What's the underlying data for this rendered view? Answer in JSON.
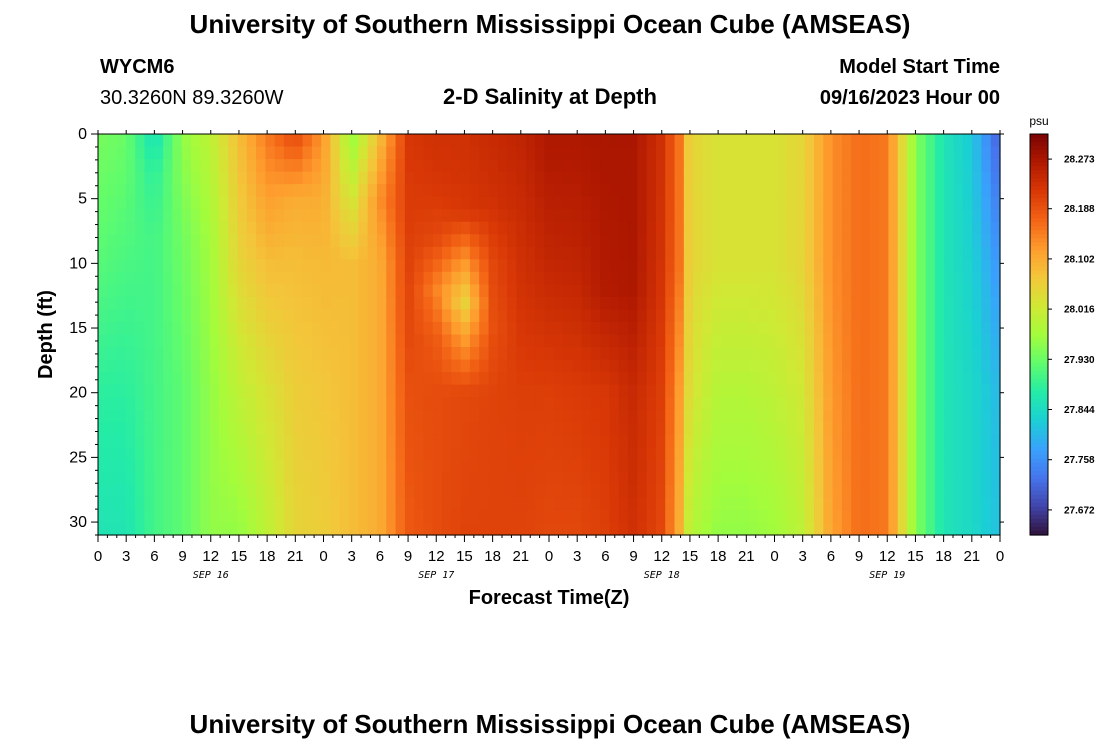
{
  "header": {
    "title": "University of Southern Mississippi Ocean Cube (AMSEAS)",
    "station_id": "WYCM6",
    "station_coords": "30.3260N  89.3260W",
    "plot_title": "2-D Salinity at Depth",
    "model_start_label": "Model Start Time",
    "model_start_value": "09/16/2023 Hour 00"
  },
  "footer": {
    "title": "University of Southern Mississippi Ocean Cube (AMSEAS)"
  },
  "chart_data": {
    "type": "heatmap",
    "xlabel": "Forecast Time(Z)",
    "ylabel": "Depth (ft)",
    "x_unit": "forecast hour",
    "xlim": [
      0,
      96
    ],
    "ylim": [
      0,
      31
    ],
    "y_inverted": true,
    "x_tick_labels": [
      "0",
      "3",
      "6",
      "9",
      "12",
      "15",
      "18",
      "21",
      "0",
      "3",
      "6",
      "9",
      "12",
      "15",
      "18",
      "21",
      "0",
      "3",
      "6",
      "9",
      "12",
      "15",
      "18",
      "21",
      "0",
      "3",
      "6",
      "9",
      "12",
      "15",
      "18",
      "21",
      "0"
    ],
    "date_labels": [
      {
        "label": "SEP 16",
        "hour": 12
      },
      {
        "label": "SEP 17",
        "hour": 36
      },
      {
        "label": "SEP 18",
        "hour": 60
      },
      {
        "label": "SEP 19",
        "hour": 84
      }
    ],
    "y_ticks": [
      0,
      5,
      10,
      15,
      20,
      25,
      30
    ],
    "colorbar": {
      "unit": "psu",
      "min": 27.629,
      "max": 28.316,
      "tick_values": [
        28.273,
        28.188,
        28.102,
        28.016,
        27.93,
        27.844,
        27.758,
        27.672
      ],
      "tick_labels": [
        "28.273",
        "28.188",
        "28.102",
        "28.016",
        "27.930",
        "27.844",
        "27.758",
        "27.672"
      ]
    },
    "profiles": [
      {
        "hour": 0,
        "depths": [
          0,
          10,
          20,
          31
        ],
        "values": [
          27.94,
          27.915,
          27.88,
          27.86
        ]
      },
      {
        "hour": 3,
        "depths": [
          0,
          10,
          20,
          31
        ],
        "values": [
          27.93,
          27.905,
          27.88,
          27.86
        ]
      },
      {
        "hour": 6,
        "depths": [
          0,
          3,
          8,
          20,
          31
        ],
        "values": [
          27.85,
          27.88,
          27.9,
          27.9,
          27.9
        ]
      },
      {
        "hour": 9,
        "depths": [
          0,
          8,
          20,
          31
        ],
        "values": [
          27.96,
          27.935,
          27.92,
          27.92
        ]
      },
      {
        "hour": 12,
        "depths": [
          0,
          8,
          20,
          31
        ],
        "values": [
          28.0,
          27.975,
          27.96,
          27.96
        ]
      },
      {
        "hour": 15,
        "depths": [
          0,
          10,
          20,
          31
        ],
        "values": [
          28.08,
          28.05,
          28.0,
          27.96
        ]
      },
      {
        "hour": 18,
        "depths": [
          0,
          10,
          20,
          31
        ],
        "values": [
          28.15,
          28.08,
          28.03,
          28.0
        ]
      },
      {
        "hour": 21,
        "depths": [
          0,
          5,
          10,
          20,
          31
        ],
        "values": [
          28.2,
          28.1,
          28.08,
          28.06,
          28.05
        ]
      },
      {
        "hour": 24,
        "depths": [
          0,
          5,
          10,
          20,
          31
        ],
        "values": [
          28.12,
          28.1,
          28.085,
          28.07,
          28.06
        ]
      },
      {
        "hour": 27,
        "depths": [
          0,
          5,
          10,
          20,
          31
        ],
        "values": [
          27.96,
          28.02,
          28.08,
          28.08,
          28.08
        ]
      },
      {
        "hour": 30,
        "depths": [
          0,
          5,
          10,
          20,
          31
        ],
        "values": [
          28.08,
          28.13,
          28.1,
          28.1,
          28.1
        ]
      },
      {
        "hour": 33,
        "depths": [
          0,
          8,
          15,
          20,
          31
        ],
        "values": [
          28.22,
          28.21,
          28.2,
          28.19,
          28.18
        ]
      },
      {
        "hour": 36,
        "depths": [
          0,
          4,
          8,
          12,
          16,
          20,
          31
        ],
        "values": [
          28.23,
          28.22,
          28.2,
          28.14,
          28.18,
          28.195,
          28.195
        ]
      },
      {
        "hour": 39,
        "depths": [
          0,
          6,
          10,
          13,
          16,
          20,
          31
        ],
        "values": [
          28.23,
          28.22,
          28.12,
          28.05,
          28.12,
          28.2,
          28.205
        ]
      },
      {
        "hour": 42,
        "depths": [
          0,
          5,
          10,
          15,
          20,
          31
        ],
        "values": [
          28.24,
          28.23,
          28.2,
          28.19,
          28.205,
          28.205
        ]
      },
      {
        "hour": 45,
        "depths": [
          0,
          10,
          20,
          31
        ],
        "values": [
          28.25,
          28.23,
          28.21,
          28.205
        ]
      },
      {
        "hour": 48,
        "depths": [
          0,
          10,
          20,
          31
        ],
        "values": [
          28.27,
          28.245,
          28.21,
          28.2
        ]
      },
      {
        "hour": 51,
        "depths": [
          0,
          10,
          20,
          31
        ],
        "values": [
          28.27,
          28.25,
          28.215,
          28.2
        ]
      },
      {
        "hour": 54,
        "depths": [
          0,
          12,
          20,
          31
        ],
        "values": [
          28.273,
          28.265,
          28.22,
          28.21
        ]
      },
      {
        "hour": 57,
        "depths": [
          0,
          12,
          20,
          31
        ],
        "values": [
          28.273,
          28.27,
          28.24,
          28.23
        ]
      },
      {
        "hour": 60,
        "depths": [
          0,
          10,
          20,
          31
        ],
        "values": [
          28.23,
          28.225,
          28.21,
          28.2
        ]
      },
      {
        "hour": 62,
        "depths": [
          0,
          10,
          20,
          31
        ],
        "values": [
          28.15,
          28.15,
          28.11,
          28.09
        ]
      },
      {
        "hour": 63,
        "depths": [
          0,
          10,
          20,
          31
        ],
        "values": [
          28.05,
          28.05,
          28.03,
          27.99
        ]
      },
      {
        "hour": 66,
        "depths": [
          0,
          10,
          20,
          31
        ],
        "values": [
          28.03,
          28.03,
          27.99,
          27.96
        ]
      },
      {
        "hour": 69,
        "depths": [
          0,
          10,
          20,
          31
        ],
        "values": [
          28.03,
          28.03,
          27.99,
          27.96
        ]
      },
      {
        "hour": 72,
        "depths": [
          0,
          10,
          20,
          31
        ],
        "values": [
          28.03,
          28.03,
          28.0,
          27.97
        ]
      },
      {
        "hour": 75,
        "depths": [
          0,
          10,
          20,
          31
        ],
        "values": [
          28.05,
          28.05,
          28.02,
          28.0
        ]
      },
      {
        "hour": 78,
        "depths": [
          0,
          10,
          20,
          31
        ],
        "values": [
          28.13,
          28.13,
          28.12,
          28.11
        ]
      },
      {
        "hour": 81,
        "depths": [
          0,
          10,
          20,
          31
        ],
        "values": [
          28.16,
          28.16,
          28.16,
          28.16
        ]
      },
      {
        "hour": 84,
        "depths": [
          0,
          10,
          20,
          31
        ],
        "values": [
          28.15,
          28.15,
          28.15,
          28.15
        ]
      },
      {
        "hour": 87,
        "depths": [
          0,
          10,
          20,
          31
        ],
        "values": [
          27.95,
          27.95,
          27.95,
          27.95
        ]
      },
      {
        "hour": 90,
        "depths": [
          0,
          10,
          20,
          31
        ],
        "values": [
          27.86,
          27.86,
          27.86,
          27.86
        ]
      },
      {
        "hour": 93,
        "depths": [
          0,
          10,
          20,
          31
        ],
        "values": [
          27.82,
          27.83,
          27.84,
          27.84
        ]
      },
      {
        "hour": 96,
        "depths": [
          0,
          10,
          20,
          31
        ],
        "values": [
          27.7,
          27.76,
          27.8,
          27.81
        ]
      }
    ],
    "colormap_stops": [
      "#30123b",
      "#4145ab",
      "#4675ed",
      "#39a2fc",
      "#1bcfd4",
      "#24eca6",
      "#61fc6c",
      "#a4fc3b",
      "#d1e834",
      "#f3c63a",
      "#fe9b2d",
      "#f36315",
      "#d93806",
      "#b11901",
      "#7a0402"
    ]
  }
}
